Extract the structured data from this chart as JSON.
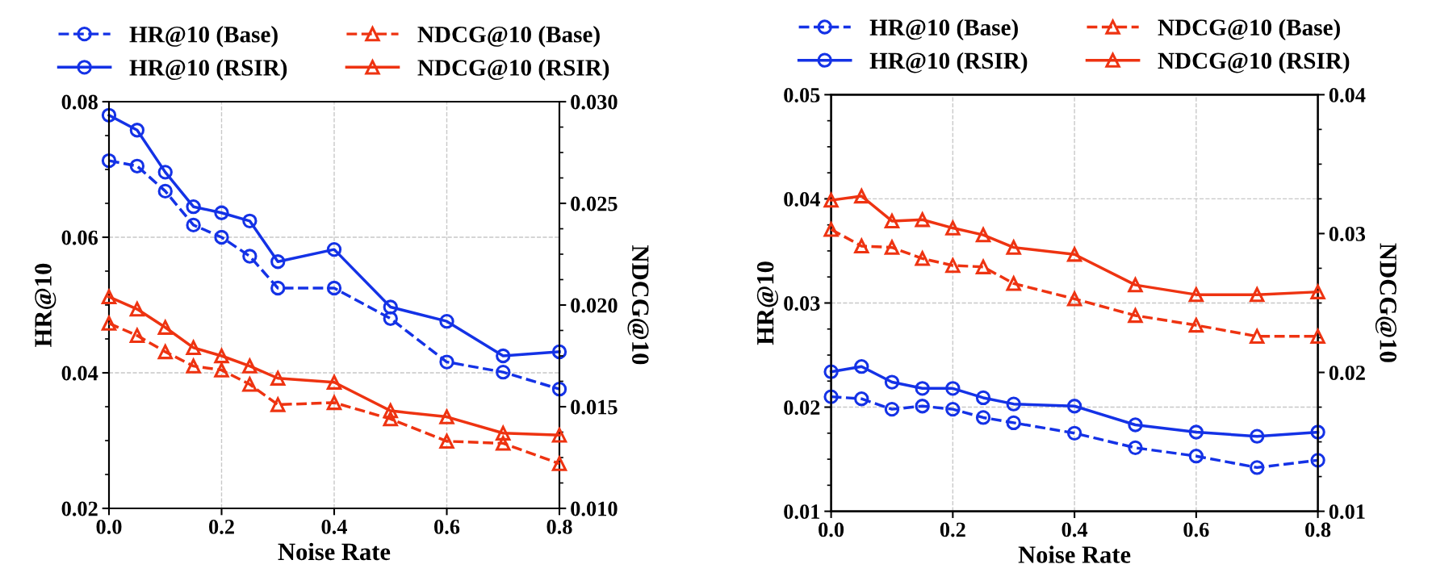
{
  "chart_data": [
    {
      "type": "line",
      "xlabel": "Noise Rate",
      "ylabel": "HR@10",
      "y2label": "NDCG@10",
      "x": [
        0,
        0.05,
        0.1,
        0.15,
        0.2,
        0.25,
        0.3,
        0.4,
        0.5,
        0.6,
        0.7,
        0.8
      ],
      "xlim": [
        0,
        0.8
      ],
      "xticks": [
        {
          "value": 0,
          "label": "0.0"
        },
        0.2,
        0.4,
        0.6,
        0.8
      ],
      "ylim": [
        0.02,
        0.08
      ],
      "yticks": [
        0.02,
        0.04,
        0.06,
        0.08
      ],
      "y2lim": [
        0.01,
        0.03
      ],
      "y2ticks": [
        {
          "value": 0.01,
          "label": "0.010"
        },
        0.015,
        {
          "value": 0.02,
          "label": "0.020"
        },
        0.025,
        {
          "value": 0.03,
          "label": "0.030"
        }
      ],
      "grid": true,
      "legend": "top",
      "series": [
        {
          "name": "HR@10 (Base)",
          "color": "#1432e6",
          "marker": "circle",
          "line_style": "dashed",
          "values": [
            0.0713,
            0.0705,
            0.0668,
            0.0618,
            0.06,
            0.0572,
            0.0525,
            0.0525,
            0.048,
            0.0416,
            0.0401,
            0.0376
          ]
        },
        {
          "name": "HR@10 (RSIR)",
          "color": "#1432e6",
          "marker": "circle",
          "line_style": "solid",
          "values": [
            0.078,
            0.0758,
            0.0696,
            0.0645,
            0.0636,
            0.0624,
            0.0564,
            0.0582,
            0.0497,
            0.0476,
            0.0425,
            0.0431
          ]
        },
        {
          "name": "NDCG@10 (Base)",
          "color": "#ee3311",
          "marker": "triangle",
          "line_style": "dashed",
          "axis": "y2",
          "values": [
            0.0191,
            0.0185,
            0.0177,
            0.017,
            0.0168,
            0.0161,
            0.0151,
            0.0152,
            0.0144,
            0.0133,
            0.0132,
            0.0122
          ]
        },
        {
          "name": "NDCG@10 (RSIR)",
          "color": "#ee3311",
          "marker": "triangle",
          "line_style": "solid",
          "axis": "y2",
          "values": [
            0.0204,
            0.0198,
            0.0189,
            0.0179,
            0.0175,
            0.017,
            0.0164,
            0.0162,
            0.0148,
            0.0145,
            0.0137,
            0.0136
          ]
        }
      ]
    },
    {
      "type": "line",
      "xlabel": "Noise Rate",
      "ylabel": "HR@10",
      "y2label": "NDCG@10",
      "x": [
        0,
        0.05,
        0.1,
        0.15,
        0.2,
        0.25,
        0.3,
        0.4,
        0.5,
        0.6,
        0.7,
        0.8
      ],
      "xlim": [
        0,
        0.8
      ],
      "xticks": [
        {
          "value": 0,
          "label": "0.0"
        },
        0.2,
        0.4,
        0.6,
        0.8
      ],
      "ylim": [
        0.01,
        0.05
      ],
      "yticks": [
        0.01,
        0.02,
        0.03,
        0.04,
        0.05
      ],
      "y2lim": [
        0.01,
        0.04
      ],
      "y2ticks": [
        0.01,
        0.02,
        0.03,
        0.04
      ],
      "grid": true,
      "legend": "top",
      "series": [
        {
          "name": "HR@10 (Base)",
          "color": "#1432e6",
          "marker": "circle",
          "line_style": "dashed",
          "values": [
            0.021,
            0.0208,
            0.0198,
            0.0201,
            0.0198,
            0.019,
            0.0185,
            0.0175,
            0.0161,
            0.0153,
            0.0142,
            0.0149
          ]
        },
        {
          "name": "HR@10 (RSIR)",
          "color": "#1432e6",
          "marker": "circle",
          "line_style": "solid",
          "values": [
            0.0234,
            0.0239,
            0.0224,
            0.0218,
            0.0218,
            0.0209,
            0.0203,
            0.0201,
            0.0183,
            0.0176,
            0.0172,
            0.0176
          ]
        },
        {
          "name": "NDCG@10 (Base)",
          "color": "#ee3311",
          "marker": "triangle",
          "line_style": "dashed",
          "axis": "y2",
          "values": [
            0.0303,
            0.0291,
            0.029,
            0.0282,
            0.0277,
            0.0276,
            0.0264,
            0.0253,
            0.0241,
            0.0234,
            0.0226,
            0.0226
          ]
        },
        {
          "name": "NDCG@10 (RSIR)",
          "color": "#ee3311",
          "marker": "triangle",
          "line_style": "solid",
          "axis": "y2",
          "values": [
            0.0324,
            0.0327,
            0.0309,
            0.031,
            0.0304,
            0.0299,
            0.029,
            0.0285,
            0.0263,
            0.0256,
            0.0256,
            0.0258
          ]
        }
      ]
    }
  ]
}
